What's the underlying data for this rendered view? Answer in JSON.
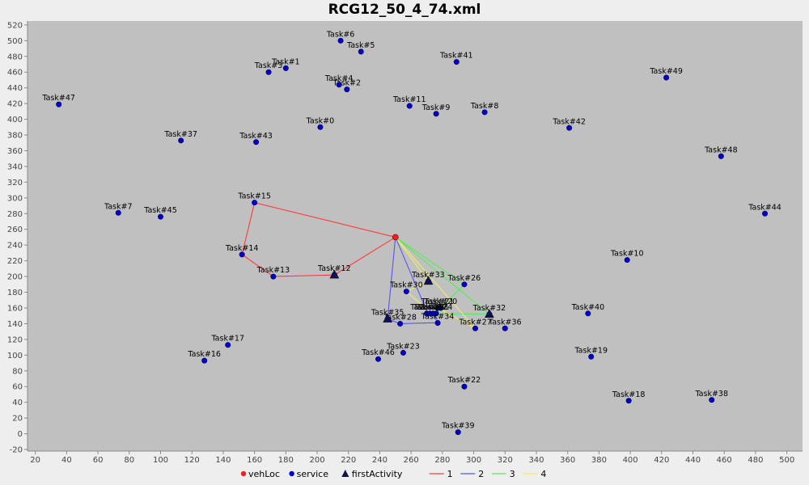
{
  "chart_data": {
    "type": "scatter",
    "title": "RCG12_50_4_74.xml",
    "xlim": [
      15,
      510
    ],
    "ylim": [
      -22,
      525
    ],
    "xticks": [
      20,
      40,
      60,
      80,
      100,
      120,
      140,
      160,
      180,
      200,
      220,
      240,
      260,
      280,
      300,
      320,
      340,
      360,
      380,
      400,
      420,
      440,
      460,
      480,
      500
    ],
    "yticks": [
      -20,
      0,
      20,
      40,
      60,
      80,
      100,
      120,
      140,
      160,
      180,
      200,
      220,
      240,
      260,
      280,
      300,
      320,
      340,
      360,
      380,
      400,
      420,
      440,
      460,
      480,
      500,
      520
    ],
    "grid": false,
    "legend_position": "bottom",
    "colors": {
      "plot_bg": "#c0c0c0",
      "service": "#0000cc",
      "vehLoc": "#ee2222",
      "route1": "#ff3b3b",
      "route2": "#5555ee",
      "route3": "#55ee55",
      "route4": "#eeee66"
    },
    "legend": [
      {
        "label": "vehLoc",
        "marker": "dot",
        "color": "#ee2222"
      },
      {
        "label": "service",
        "marker": "dot",
        "color": "#0000cc"
      },
      {
        "label": "firstActivity",
        "marker": "triangle",
        "color": "#111144"
      },
      {
        "label": "1",
        "marker": "line",
        "color": "#ff3b3b"
      },
      {
        "label": "2",
        "marker": "line",
        "color": "#5555ee"
      },
      {
        "label": "3",
        "marker": "line",
        "color": "#55ee55"
      },
      {
        "label": "4",
        "marker": "line",
        "color": "#eeee66"
      }
    ],
    "vehLoc": {
      "x": 250,
      "y": 250
    },
    "services": [
      {
        "label": "Task#0",
        "x": 202,
        "y": 390
      },
      {
        "label": "Task#1",
        "x": 180,
        "y": 465
      },
      {
        "label": "Task#2",
        "x": 219,
        "y": 438
      },
      {
        "label": "Task#3",
        "x": 169,
        "y": 460
      },
      {
        "label": "Task#4",
        "x": 214,
        "y": 444
      },
      {
        "label": "Task#5",
        "x": 228,
        "y": 486
      },
      {
        "label": "Task#6",
        "x": 215,
        "y": 500
      },
      {
        "label": "Task#7",
        "x": 73,
        "y": 281
      },
      {
        "label": "Task#8",
        "x": 307,
        "y": 409
      },
      {
        "label": "Task#9",
        "x": 276,
        "y": 407
      },
      {
        "label": "Task#10",
        "x": 398,
        "y": 221
      },
      {
        "label": "Task#11",
        "x": 259,
        "y": 417
      },
      {
        "label": "Task#12",
        "x": 211,
        "y": 202
      },
      {
        "label": "Task#13",
        "x": 172,
        "y": 200
      },
      {
        "label": "Task#14",
        "x": 152,
        "y": 228
      },
      {
        "label": "Task#15",
        "x": 160,
        "y": 294
      },
      {
        "label": "Task#16",
        "x": 128,
        "y": 93
      },
      {
        "label": "Task#17",
        "x": 143,
        "y": 113
      },
      {
        "label": "Task#18",
        "x": 399,
        "y": 42
      },
      {
        "label": "Task#19",
        "x": 375,
        "y": 98
      },
      {
        "label": "Task#20",
        "x": 279,
        "y": 160
      },
      {
        "label": "Task#21",
        "x": 277,
        "y": 160
      },
      {
        "label": "Task#22",
        "x": 294,
        "y": 60
      },
      {
        "label": "Task#23",
        "x": 255,
        "y": 103
      },
      {
        "label": "Task#24",
        "x": 276,
        "y": 153
      },
      {
        "label": "Task#25",
        "x": 270,
        "y": 153
      },
      {
        "label": "Task#26",
        "x": 294,
        "y": 190
      },
      {
        "label": "Task#27",
        "x": 301,
        "y": 134
      },
      {
        "label": "Task#28",
        "x": 253,
        "y": 140
      },
      {
        "label": "Task#29",
        "x": 272,
        "y": 153
      },
      {
        "label": "Task#30",
        "x": 257,
        "y": 181
      },
      {
        "label": "Task#31",
        "x": 274,
        "y": 153
      },
      {
        "label": "Task#32",
        "x": 310,
        "y": 152
      },
      {
        "label": "Task#33",
        "x": 271,
        "y": 194
      },
      {
        "label": "Task#34",
        "x": 277,
        "y": 141
      },
      {
        "label": "Task#35",
        "x": 245,
        "y": 146
      },
      {
        "label": "Task#36",
        "x": 320,
        "y": 134
      },
      {
        "label": "Task#37",
        "x": 113,
        "y": 373
      },
      {
        "label": "Task#38",
        "x": 452,
        "y": 43
      },
      {
        "label": "Task#39",
        "x": 290,
        "y": 2
      },
      {
        "label": "Task#40",
        "x": 373,
        "y": 153
      },
      {
        "label": "Task#41",
        "x": 289,
        "y": 473
      },
      {
        "label": "Task#42",
        "x": 361,
        "y": 389
      },
      {
        "label": "Task#43",
        "x": 161,
        "y": 371
      },
      {
        "label": "Task#44",
        "x": 486,
        "y": 280
      },
      {
        "label": "Task#45",
        "x": 100,
        "y": 276
      },
      {
        "label": "Task#46",
        "x": 239,
        "y": 95
      },
      {
        "label": "Task#47",
        "x": 35,
        "y": 419
      },
      {
        "label": "Task#48",
        "x": 458,
        "y": 353
      },
      {
        "label": "Task#49",
        "x": 423,
        "y": 453
      }
    ],
    "first_activities": [
      {
        "x": 211,
        "y": 202
      },
      {
        "x": 245,
        "y": 146
      },
      {
        "x": 310,
        "y": 152
      },
      {
        "x": 271,
        "y": 194
      }
    ],
    "routes": [
      {
        "name": "1",
        "points": [
          [
            250,
            250
          ],
          [
            160,
            294
          ],
          [
            152,
            228
          ],
          [
            172,
            200
          ],
          [
            211,
            202
          ],
          [
            250,
            250
          ]
        ]
      },
      {
        "name": "2",
        "points": [
          [
            250,
            250
          ],
          [
            245,
            146
          ],
          [
            253,
            140
          ],
          [
            272,
            141
          ],
          [
            277,
            141
          ],
          [
            274,
            153
          ],
          [
            270,
            156
          ],
          [
            250,
            250
          ]
        ]
      },
      {
        "name": "3",
        "points": [
          [
            250,
            250
          ],
          [
            310,
            152
          ],
          [
            276,
            153
          ],
          [
            279,
            160
          ],
          [
            294,
            190
          ],
          [
            250,
            250
          ]
        ]
      },
      {
        "name": "4",
        "points": [
          [
            250,
            250
          ],
          [
            271,
            194
          ],
          [
            257,
            181
          ],
          [
            272,
            155
          ],
          [
            277,
            160
          ],
          [
            301,
            134
          ],
          [
            250,
            250
          ]
        ]
      }
    ]
  }
}
